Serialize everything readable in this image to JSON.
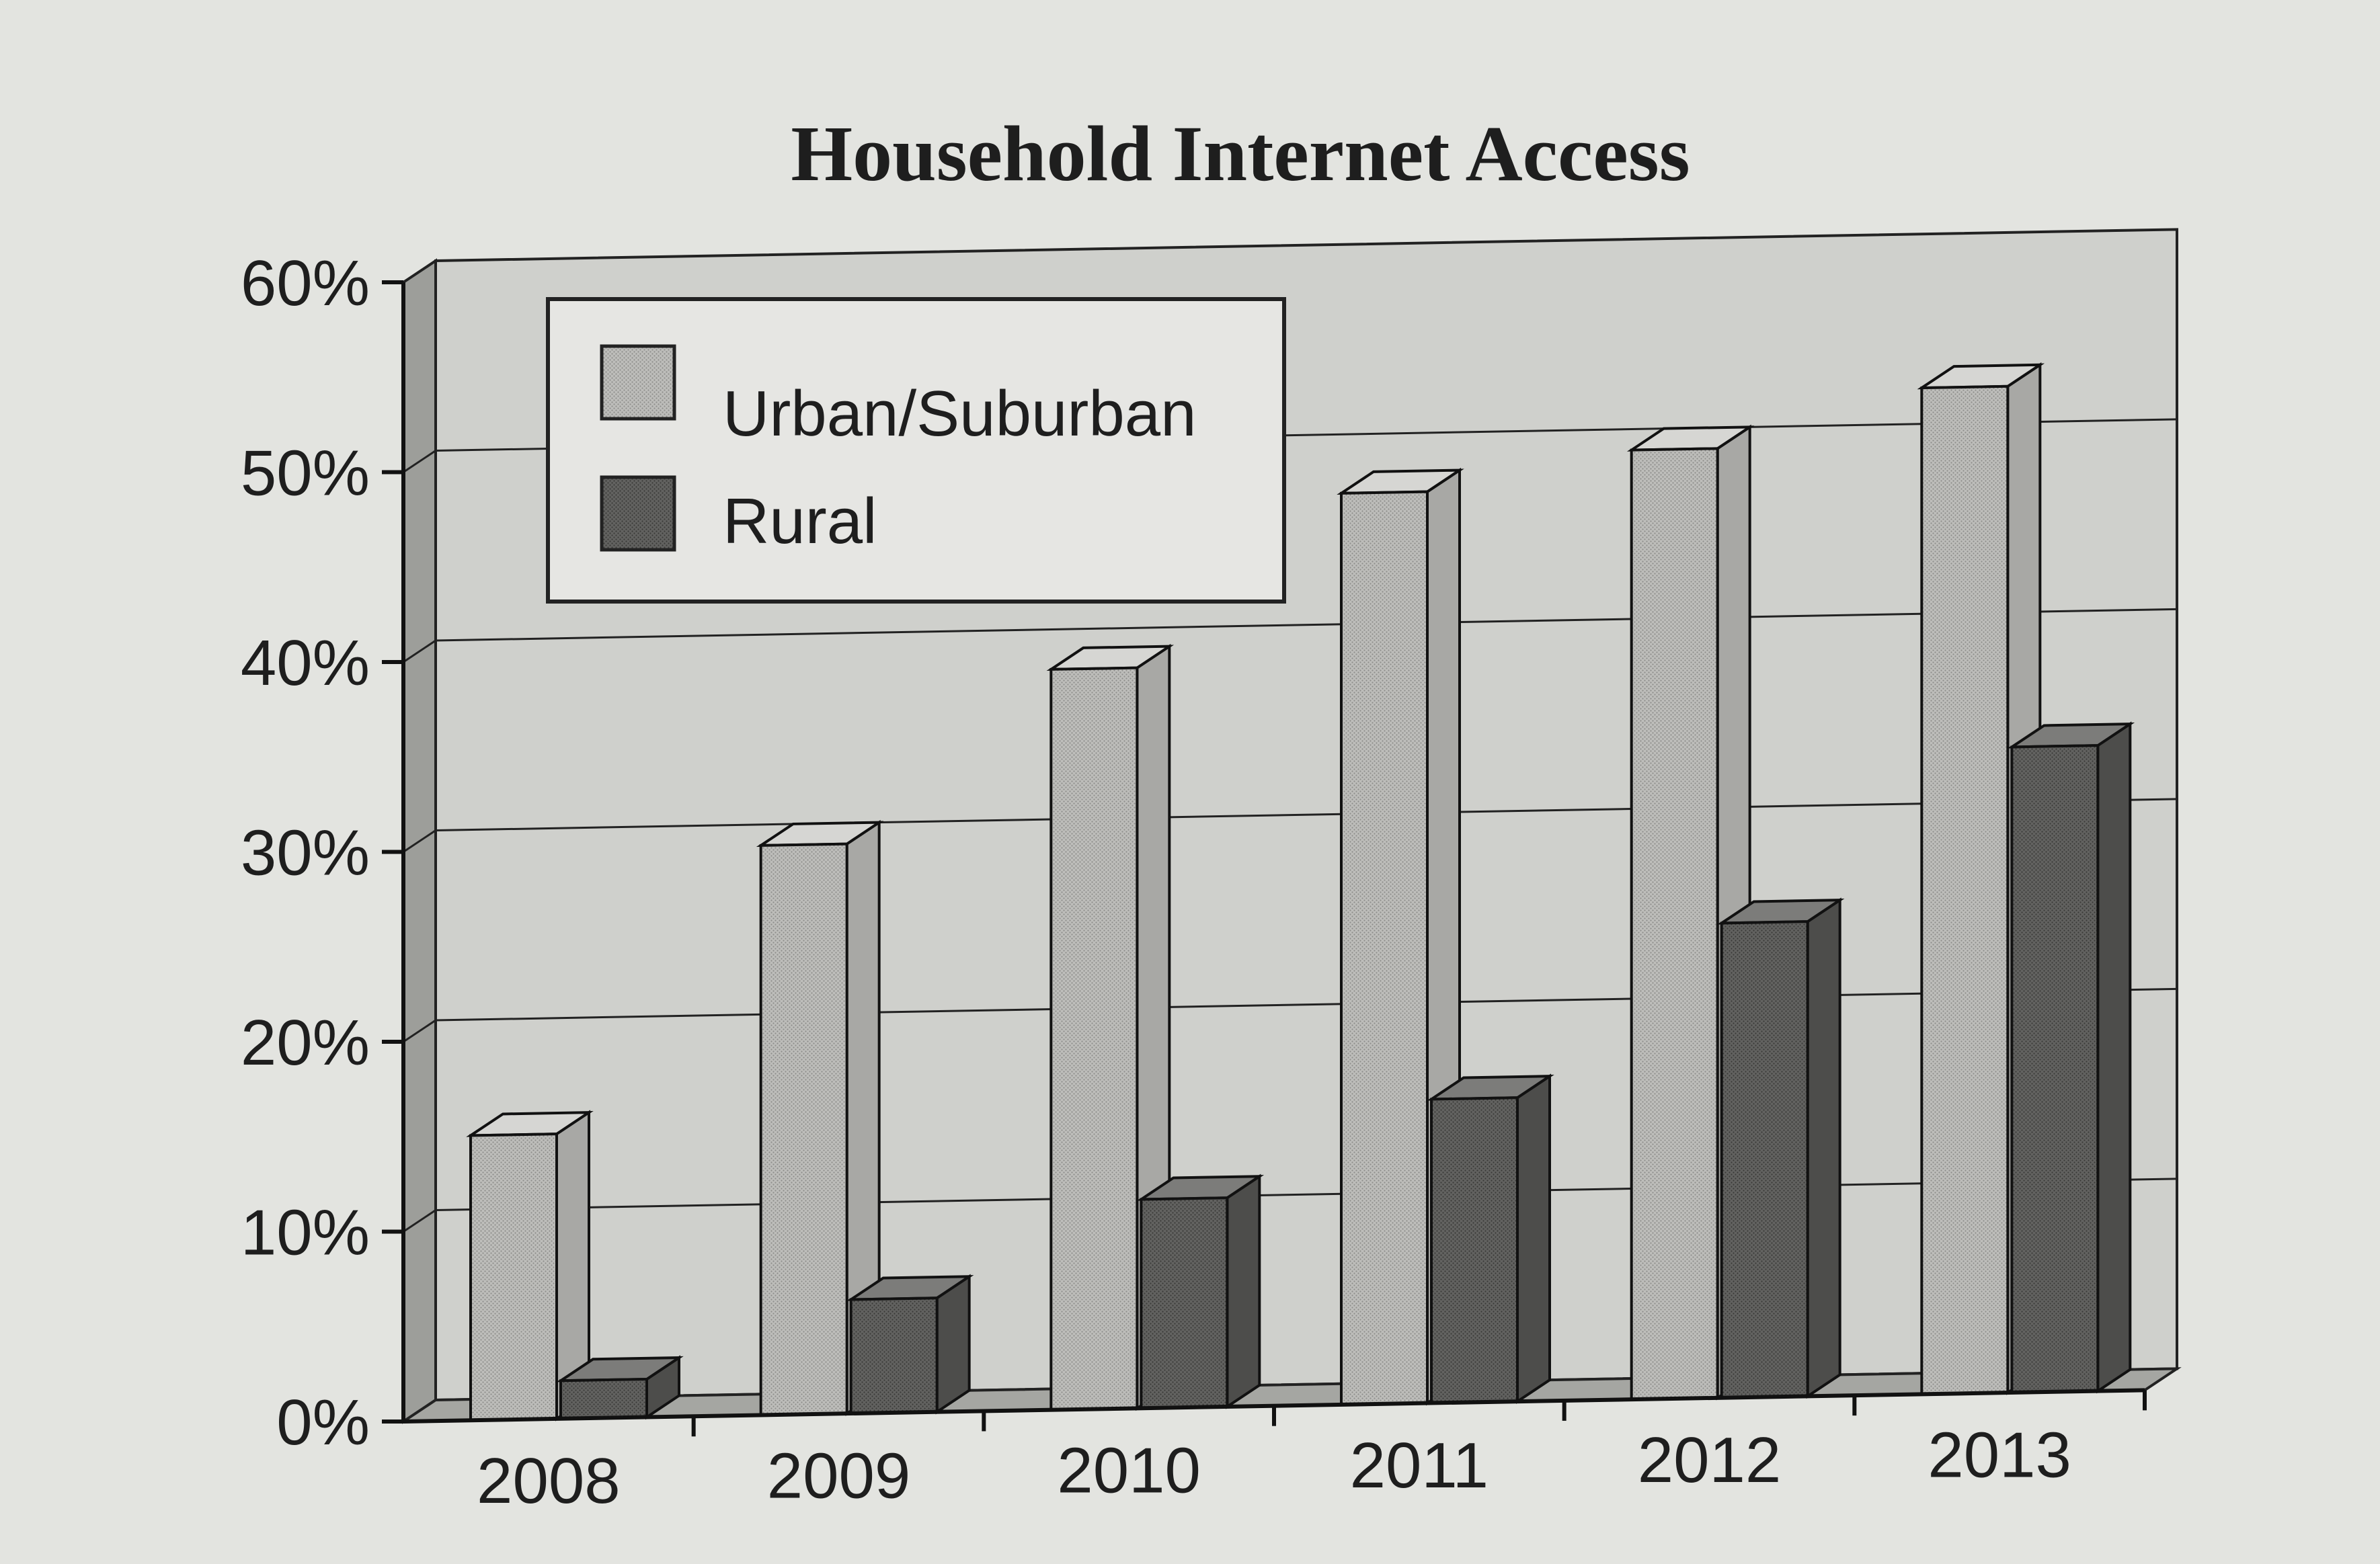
{
  "chart_data": {
    "type": "bar",
    "title": "Household Internet Access",
    "xlabel": "",
    "ylabel": "",
    "categories": [
      "2008",
      "2009",
      "2010",
      "2011",
      "2012",
      "2013"
    ],
    "series": [
      {
        "name": "Urban/Suburban",
        "values": [
          15,
          30,
          39,
          48,
          50,
          53
        ],
        "color": "#b9b9b6"
      },
      {
        "name": "Rural",
        "values": [
          2,
          6,
          11,
          16,
          25,
          34
        ],
        "color": "#5f5f5d"
      }
    ],
    "yticks": [
      "0%",
      "10%",
      "20%",
      "30%",
      "40%",
      "50%",
      "60%"
    ],
    "ylim": [
      0,
      60
    ],
    "grid": true,
    "legend_position": "top-left",
    "style": "3d"
  }
}
